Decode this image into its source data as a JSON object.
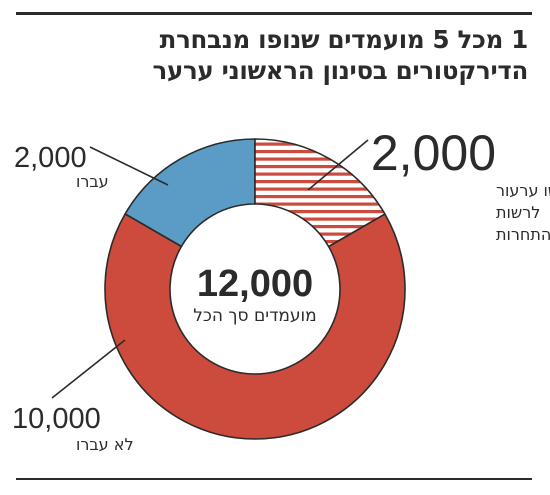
{
  "title": {
    "line1": "1 מכל 5 מועמדים שנופו מנבחרת",
    "line2": "הדירקטורים בסינון הראשוני ערער"
  },
  "colors": {
    "passed": "#5b9cc6",
    "failed": "#cd4b3c",
    "appealed_hatch": "#cd4b3c",
    "total_text": "#2b2b2b"
  },
  "center": {
    "value": "12,000",
    "label": "מועמדים סך הכל"
  },
  "callouts": {
    "passed": {
      "value": "2,000",
      "label": "עברו"
    },
    "failed": {
      "value": "10,000",
      "label": "לא עברו"
    },
    "appealed": {
      "value": "2,000",
      "label_lines": [
        "הגישו ערעור",
        "לרשות",
        "התחרות"
      ]
    }
  },
  "chart_data": {
    "type": "pie",
    "variant": "donut",
    "total": 12000,
    "slices": [
      {
        "label": "עברו",
        "value": 2000,
        "color": "#5b9cc6"
      },
      {
        "label": "לא עברו",
        "value": 10000,
        "color": "#cd4b3c"
      }
    ],
    "sub_slice": {
      "label": "הגישו ערעור לרשות התחרות",
      "value": 2000,
      "parent": "לא עברו",
      "pattern": "horizontal-hatch"
    }
  }
}
